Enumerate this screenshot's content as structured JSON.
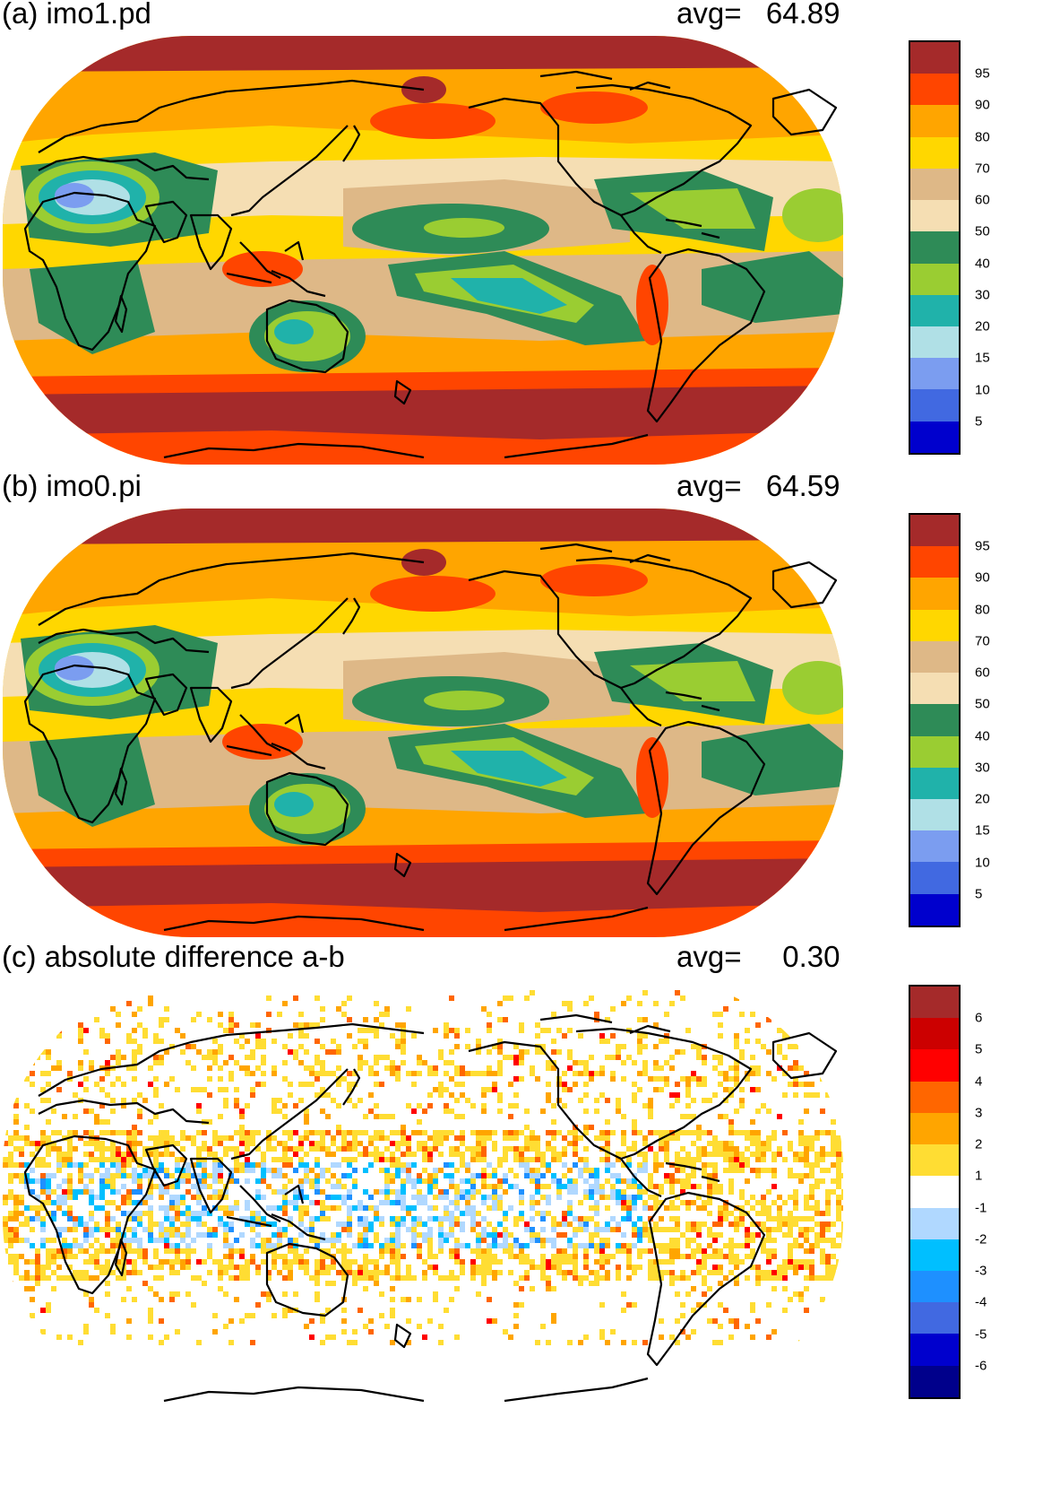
{
  "panels": [
    {
      "id": "a",
      "title": "(a) imo1.pd",
      "avg_label": "avg=",
      "avg_value": "64.89",
      "kind": "field",
      "colorbar": {
        "colors": [
          "#a52a2a",
          "#ff4500",
          "#ffa500",
          "#ffd700",
          "#deb887",
          "#f5deb3",
          "#2e8b57",
          "#9acd32",
          "#20b2aa",
          "#b0e0e6",
          "#7b9df0",
          "#4169e1",
          "#0000cd"
        ],
        "labels": [
          "95",
          "90",
          "80",
          "70",
          "60",
          "50",
          "40",
          "30",
          "20",
          "15",
          "10",
          "5"
        ]
      }
    },
    {
      "id": "b",
      "title": "(b) imo0.pi",
      "avg_label": "avg=",
      "avg_value": "64.59",
      "kind": "field",
      "colorbar": {
        "colors": [
          "#a52a2a",
          "#ff4500",
          "#ffa500",
          "#ffd700",
          "#deb887",
          "#f5deb3",
          "#2e8b57",
          "#9acd32",
          "#20b2aa",
          "#b0e0e6",
          "#7b9df0",
          "#4169e1",
          "#0000cd"
        ],
        "labels": [
          "95",
          "90",
          "80",
          "70",
          "60",
          "50",
          "40",
          "30",
          "20",
          "15",
          "10",
          "5"
        ]
      }
    },
    {
      "id": "c",
      "title": "(c) absolute difference a-b",
      "avg_label": "avg=",
      "avg_value": "0.30",
      "kind": "diff",
      "colorbar": {
        "colors": [
          "#a52a2a",
          "#cc0000",
          "#ff0000",
          "#ff6600",
          "#ffa500",
          "#ffdd33",
          "#ffffff",
          "#b0d8ff",
          "#00bfff",
          "#1e90ff",
          "#4169e1",
          "#0000cd",
          "#00008b"
        ],
        "labels": [
          "6",
          "5",
          "4",
          "3",
          "2",
          "1",
          "-1",
          "-2",
          "-3",
          "-4",
          "-5",
          "-6"
        ]
      }
    }
  ]
}
